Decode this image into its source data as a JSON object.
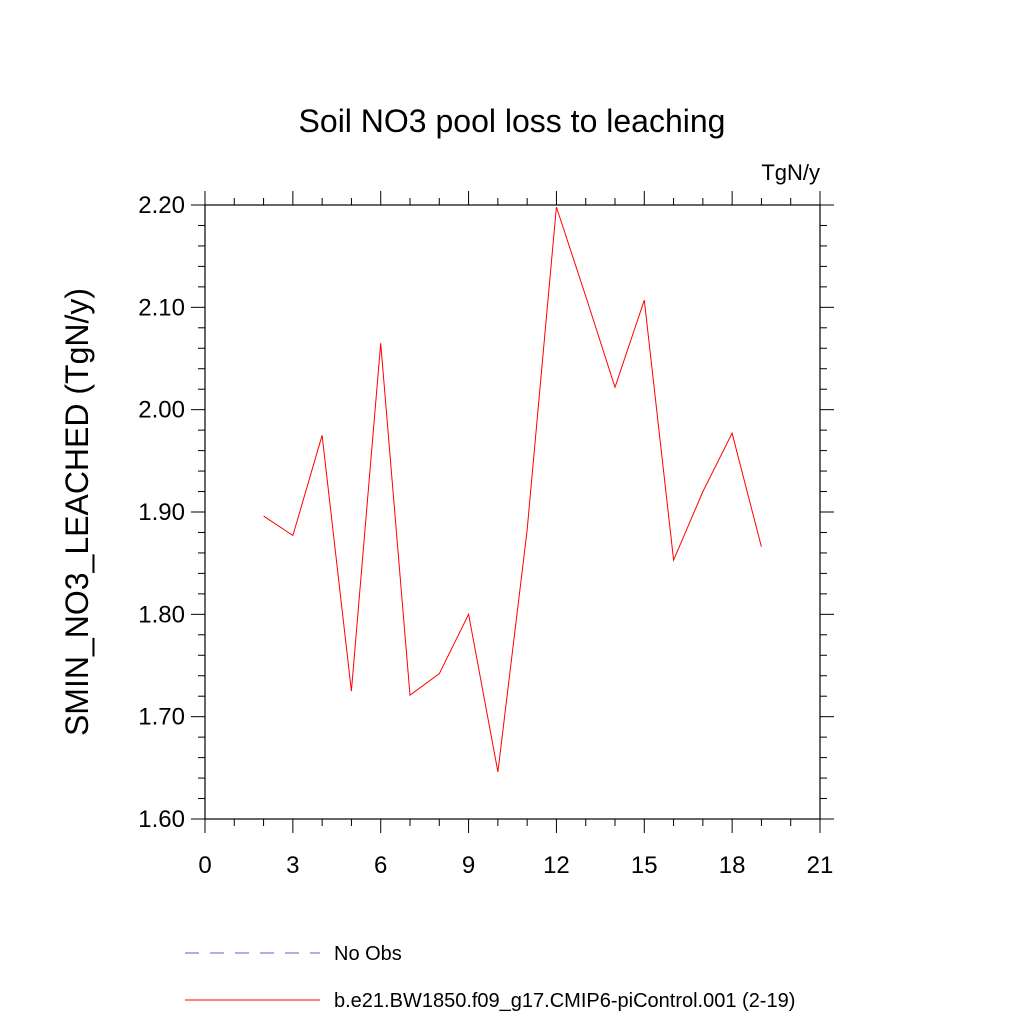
{
  "chart_data": {
    "type": "line",
    "title": "Soil NO3 pool loss to leaching",
    "unit_label": "TgN/y",
    "ylabel": "SMIN_NO3_LEACHED  (TgN/y)",
    "xlabel": "",
    "xlim": [
      0,
      21
    ],
    "ylim": [
      1.6,
      2.2
    ],
    "xticks": [
      "0",
      "3",
      "6",
      "9",
      "12",
      "15",
      "18",
      "21"
    ],
    "yticks": [
      "1.60",
      "1.70",
      "1.80",
      "1.90",
      "2.00",
      "2.10",
      "2.20"
    ],
    "grid": false,
    "legend_placement": "bottom",
    "series": [
      {
        "name": "b.e21.BW1850.f09_g17.CMIP6-piControl.001 (2-19)",
        "color": "#ff0000",
        "style": "solid",
        "x": [
          2,
          3,
          4,
          5,
          6,
          7,
          8,
          9,
          10,
          11,
          12,
          13,
          14,
          15,
          16,
          17,
          18,
          19
        ],
        "y": [
          1.896,
          1.877,
          1.975,
          1.725,
          2.065,
          1.721,
          1.742,
          1.8,
          1.646,
          1.882,
          2.198,
          2.111,
          2.022,
          2.107,
          1.853,
          1.92,
          1.977,
          1.866
        ]
      }
    ],
    "legend": [
      {
        "name": "No Obs",
        "color": "#6a5acd",
        "style": "dashed"
      },
      {
        "name": "b.e21.BW1850.f09_g17.CMIP6-piControl.001 (2-19)",
        "color": "#ff0000",
        "style": "solid"
      }
    ]
  }
}
